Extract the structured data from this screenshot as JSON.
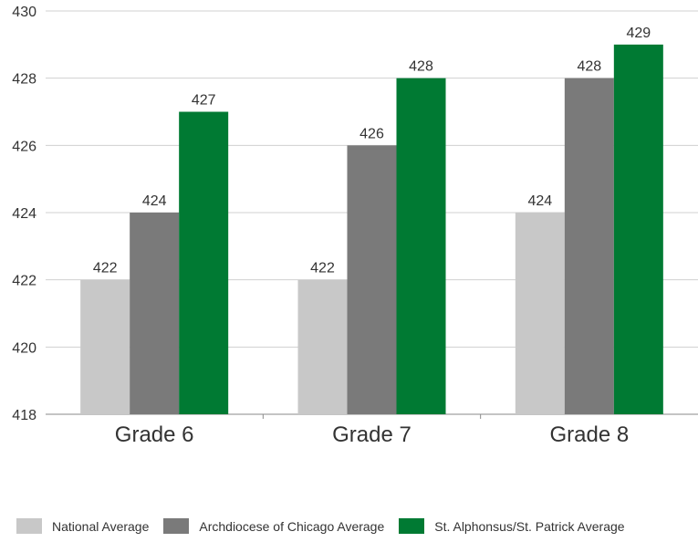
{
  "chart_data": {
    "type": "bar",
    "categories": [
      "Grade 6",
      "Grade 7",
      "Grade 8"
    ],
    "series": [
      {
        "name": "National Average",
        "color": "#c8c8c8",
        "values": [
          422,
          422,
          424
        ]
      },
      {
        "name": "Archdiocese of Chicago Average",
        "color": "#7a7a7a",
        "values": [
          424,
          426,
          428
        ]
      },
      {
        "name": "St. Alphonsus/St. Patrick Average",
        "color": "#007a33",
        "values": [
          427,
          428,
          429
        ]
      }
    ],
    "ylim": [
      418,
      430
    ],
    "yticks": [
      418,
      420,
      422,
      424,
      426,
      428,
      430
    ],
    "grid": true,
    "legend": "bottom",
    "title": "",
    "xlabel": "",
    "ylabel": ""
  }
}
